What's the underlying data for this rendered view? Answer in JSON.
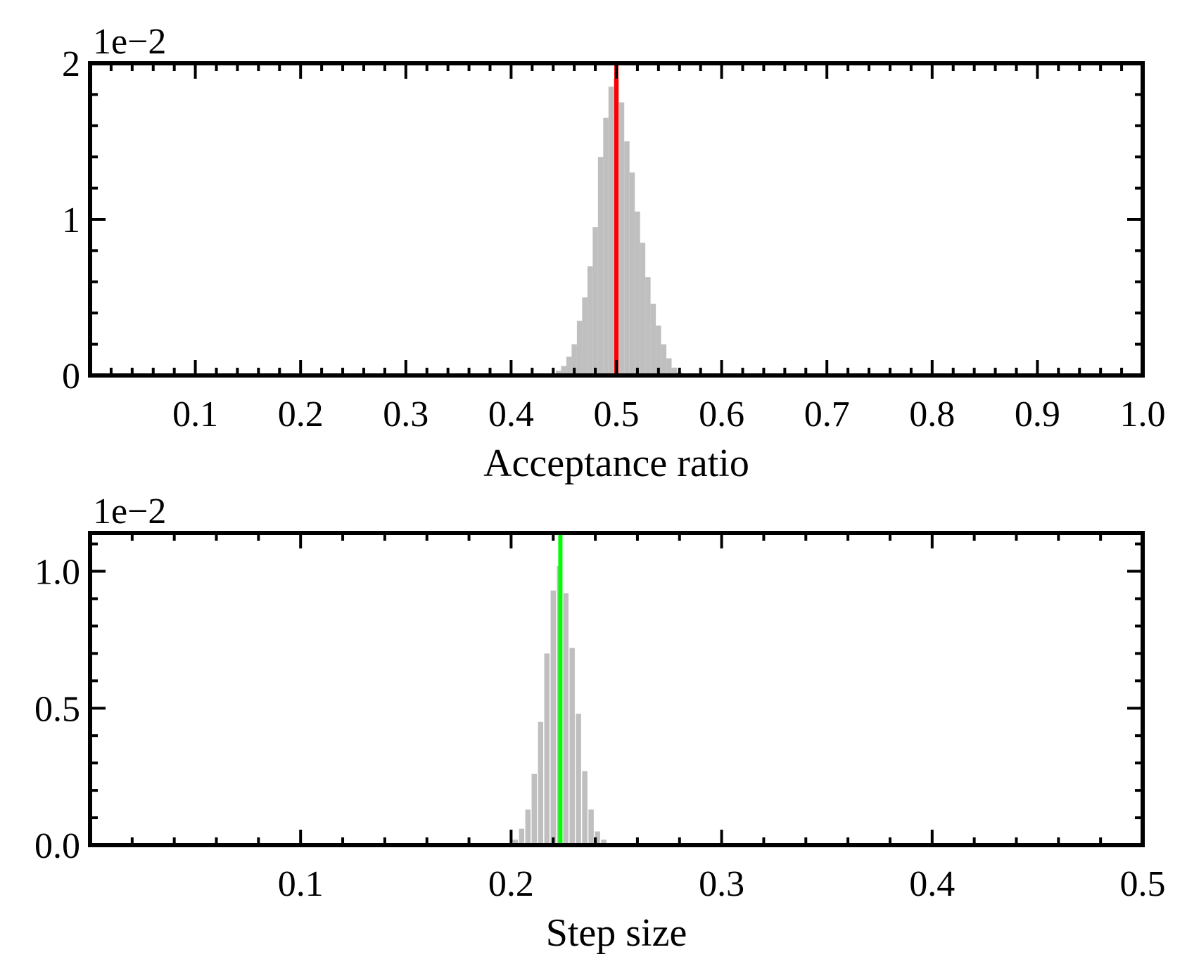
{
  "chart_data": [
    {
      "type": "bar",
      "xlabel": "Acceptance ratio",
      "ylabel": "",
      "y_offset_label": "1e−2",
      "xlim": [
        0.0,
        1.0
      ],
      "ylim": [
        0.0,
        2.0
      ],
      "x_ticks": [
        0.1,
        0.2,
        0.3,
        0.4,
        0.5,
        0.6,
        0.7,
        0.8,
        0.9,
        1.0
      ],
      "x_tick_labels": [
        "0.1",
        "0.2",
        "0.3",
        "0.4",
        "0.5",
        "0.6",
        "0.7",
        "0.8",
        "0.9",
        "1.0"
      ],
      "x_minor_step": 0.02,
      "y_ticks": [
        0,
        1,
        2
      ],
      "y_tick_labels": [
        "0",
        "1",
        "2"
      ],
      "y_minor_step": 0.2,
      "histogram": {
        "color": "#bfbfbf",
        "bin_width": 0.002,
        "centers": [
          0.445,
          0.45,
          0.455,
          0.46,
          0.465,
          0.47,
          0.475,
          0.48,
          0.485,
          0.49,
          0.495,
          0.5,
          0.505,
          0.51,
          0.515,
          0.52,
          0.525,
          0.53,
          0.535,
          0.54,
          0.545,
          0.55,
          0.555,
          0.56
        ],
        "values": [
          0.03,
          0.06,
          0.12,
          0.2,
          0.35,
          0.5,
          0.7,
          0.95,
          1.4,
          1.65,
          1.85,
          1.9,
          1.75,
          1.5,
          1.3,
          1.05,
          0.85,
          0.63,
          0.46,
          0.32,
          0.2,
          0.11,
          0.05,
          0.02
        ]
      },
      "vline": {
        "x": 0.5,
        "color": "#ff0000"
      }
    },
    {
      "type": "bar",
      "xlabel": "Step size",
      "ylabel": "",
      "y_offset_label": "1e−2",
      "xlim": [
        0.0,
        0.5
      ],
      "ylim": [
        0.0,
        1.14
      ],
      "x_ticks": [
        0.1,
        0.2,
        0.3,
        0.4,
        0.5
      ],
      "x_tick_labels": [
        "0.1",
        "0.2",
        "0.3",
        "0.4",
        "0.5"
      ],
      "x_minor_step": 0.02,
      "y_ticks": [
        0.0,
        0.5,
        1.0
      ],
      "y_tick_labels": [
        "0.0",
        "0.5",
        "1.0"
      ],
      "y_minor_step": 0.1,
      "histogram": {
        "color": "#bfbfbf",
        "bin_width": 0.001,
        "centers": [
          0.202,
          0.205,
          0.208,
          0.211,
          0.214,
          0.217,
          0.22,
          0.223,
          0.226,
          0.229,
          0.232,
          0.235,
          0.238,
          0.241,
          0.244
        ],
        "values": [
          0.02,
          0.06,
          0.13,
          0.26,
          0.45,
          0.7,
          0.93,
          1.02,
          0.92,
          0.72,
          0.48,
          0.27,
          0.13,
          0.05,
          0.02
        ]
      },
      "vline": {
        "x": 0.2234,
        "color": "#00ff00"
      }
    }
  ]
}
